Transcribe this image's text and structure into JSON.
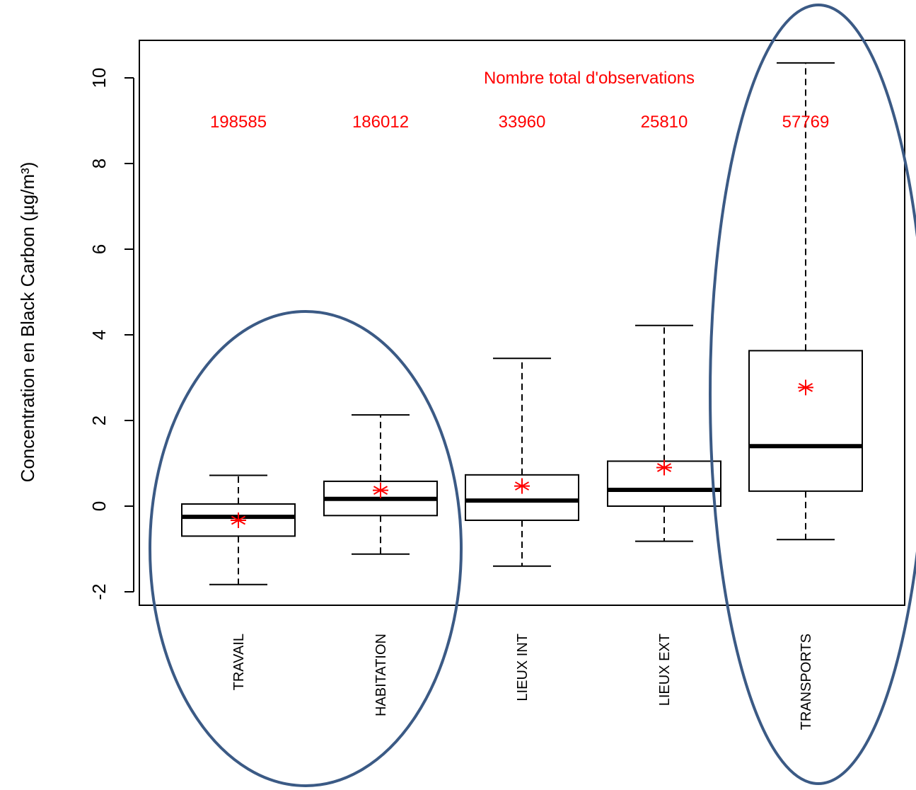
{
  "chart_data": {
    "type": "boxplot",
    "ylabel": "Concentration en Black Carbon (µg/m³)",
    "ylim": [
      -2.3,
      10.9
    ],
    "yticks": [
      -2,
      0,
      2,
      4,
      6,
      8,
      10
    ],
    "categories": [
      "TRAVAIL",
      "HABITATION",
      "LIEUX INT",
      "LIEUX EXT",
      "TRANSPORTS"
    ],
    "boxes": [
      {
        "whisker_low": -1.83,
        "q1": -0.7,
        "median": -0.25,
        "q3": 0.05,
        "whisker_high": 0.72,
        "mean": -0.33
      },
      {
        "whisker_low": -1.12,
        "q1": -0.22,
        "median": 0.17,
        "q3": 0.58,
        "whisker_high": 2.13,
        "mean": 0.37
      },
      {
        "whisker_low": -1.4,
        "q1": -0.33,
        "median": 0.13,
        "q3": 0.73,
        "whisker_high": 3.45,
        "mean": 0.47
      },
      {
        "whisker_low": -0.82,
        "q1": 0.0,
        "median": 0.38,
        "q3": 1.05,
        "whisker_high": 4.22,
        "mean": 0.9
      },
      {
        "whisker_low": -0.78,
        "q1": 0.35,
        "median": 1.4,
        "q3": 3.63,
        "whisker_high": 10.35,
        "mean": 2.77
      }
    ],
    "observations_title": "Nombre total d'observations",
    "observations": [
      "198585",
      "186012",
      "33960",
      "25810",
      "57769"
    ],
    "highlighted_groups": [
      [
        "TRAVAIL",
        "HABITATION"
      ],
      [
        "TRANSPORTS"
      ]
    ],
    "colors": {
      "box": "#000000",
      "mean_marker": "#ff0000",
      "observations_text": "#ff0000",
      "highlight_ellipse": "#3b5a85"
    },
    "grid": false,
    "legend": "none"
  }
}
